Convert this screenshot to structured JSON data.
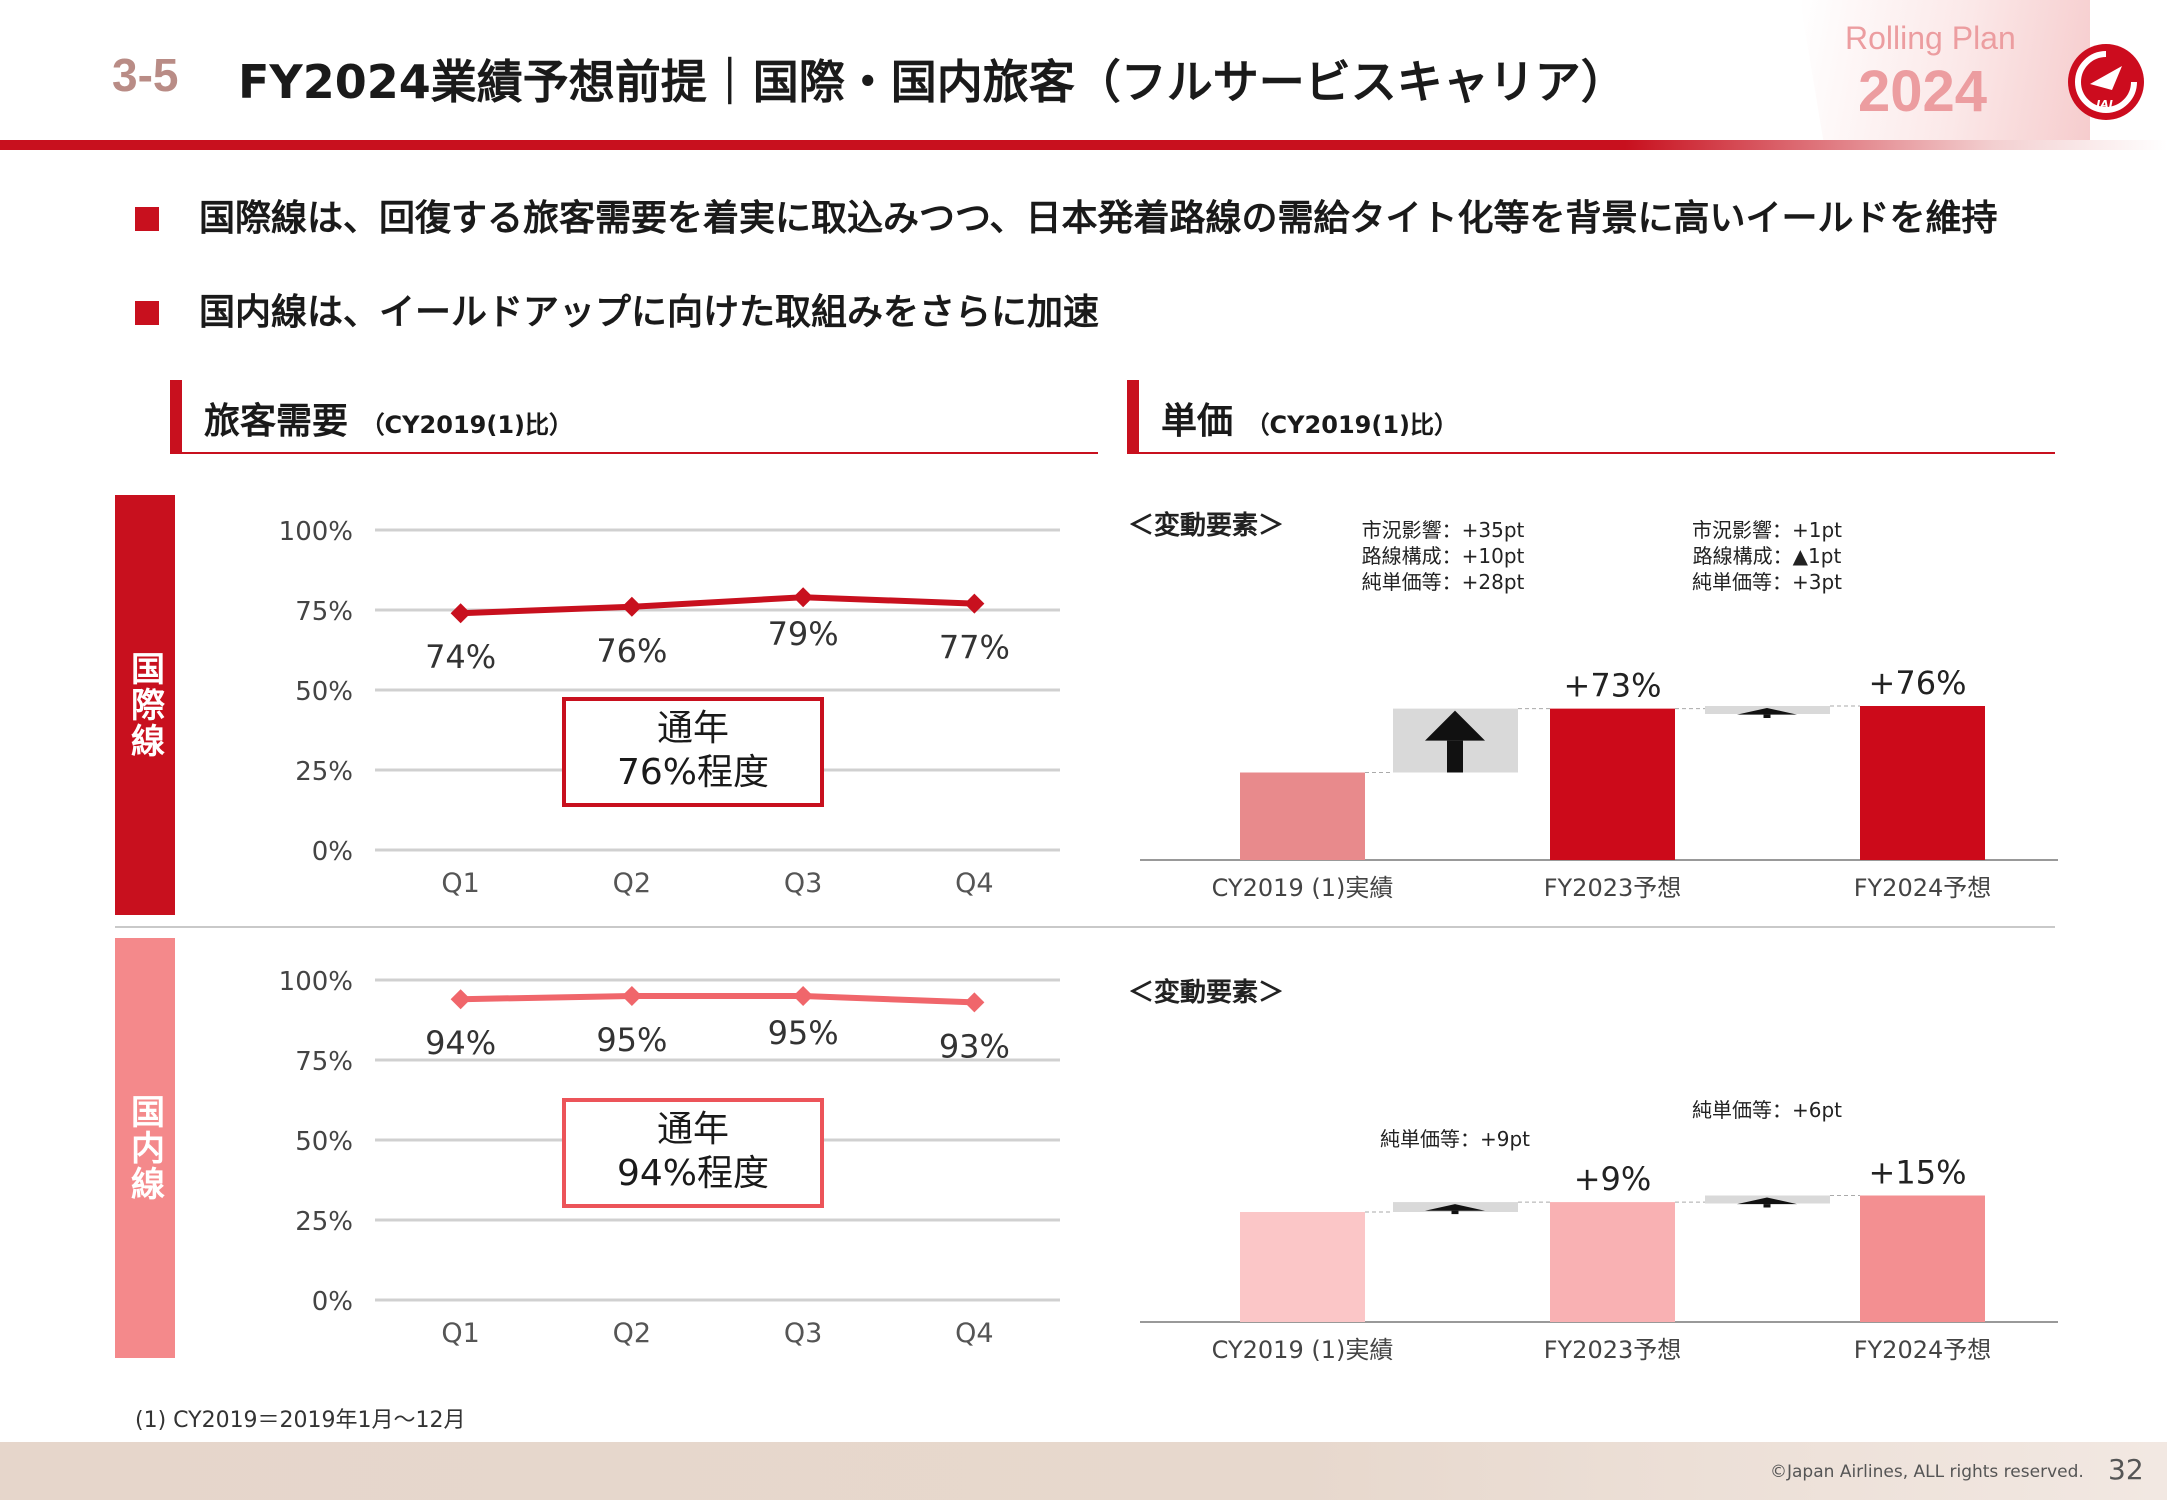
{
  "header": {
    "section_no": "3-5",
    "title": "FY2024業績予想前提｜国際・国内旅客（フルサービスキャリア）",
    "badge_line1": "Rolling Plan",
    "badge_line2": "2024",
    "logo_text": "JAL"
  },
  "bullets": [
    "国際線は、回復する旅客需要を着実に取込みつつ、日本発着路線の需給タイト化等を背景に高いイールドを維持",
    "国内線は、イールドアップに向けた取組みをさらに加速"
  ],
  "sections": {
    "demand": {
      "title": "旅客需要",
      "sub": "（CY2019(1)比）"
    },
    "unit_price": {
      "title": "単価",
      "sub": "（CY2019(1)比）"
    }
  },
  "rows": {
    "international": {
      "label": "国際線",
      "color": "#c8101e"
    },
    "domestic": {
      "label": "国内線",
      "color": "#f4898b"
    }
  },
  "factors_label": "＜変動要素＞",
  "footnote": "(1) CY2019＝2019年1月～12月",
  "footer": {
    "copyright": "©Japan Airlines, ALL rights reserved.",
    "page": "32"
  },
  "chart_data": [
    {
      "type": "line",
      "id": "intl_demand",
      "categories": [
        "Q1",
        "Q2",
        "Q3",
        "Q4"
      ],
      "series": [
        {
          "values": [
            74,
            76,
            79,
            77
          ],
          "labels": [
            "74%",
            "76%",
            "79%",
            "77%"
          ],
          "color": "#c8101e"
        }
      ],
      "yticks": [
        "0%",
        "25%",
        "50%",
        "75%",
        "100%"
      ],
      "ylim": [
        0,
        100
      ],
      "grid": true,
      "annotation": {
        "line1": "通年",
        "line2": "76%程度"
      }
    },
    {
      "type": "line",
      "id": "dom_demand",
      "categories": [
        "Q1",
        "Q2",
        "Q3",
        "Q4"
      ],
      "series": [
        {
          "values": [
            94,
            95,
            95,
            93
          ],
          "labels": [
            "94%",
            "95%",
            "95%",
            "93%"
          ],
          "color": "#f0666b"
        }
      ],
      "yticks": [
        "0%",
        "25%",
        "50%",
        "75%",
        "100%"
      ],
      "ylim": [
        0,
        100
      ],
      "grid": true,
      "annotation": {
        "line1": "通年",
        "line2": "94%程度"
      }
    },
    {
      "type": "bar",
      "id": "intl_price",
      "subtype": "waterfall",
      "categories": [
        "CY2019 (1)実績",
        "FY2023予想",
        "FY2024予想"
      ],
      "base": 100,
      "values": [
        100,
        173,
        176
      ],
      "value_labels": [
        "",
        "+73%",
        "+76%"
      ],
      "bar_colors": [
        "#e88a8c",
        "#cc0a1a",
        "#cc0a1a"
      ],
      "steps": [
        {
          "from": 100,
          "to": 173,
          "notes": [
            "市況影響：+35pt",
            "路線構成：+10pt",
            "純単価等：+28pt"
          ]
        },
        {
          "from": 173,
          "to": 176,
          "notes": [
            "市況影響：+1pt",
            "路線構成：▲1pt",
            "純単価等：+3pt"
          ]
        }
      ]
    },
    {
      "type": "bar",
      "id": "dom_price",
      "subtype": "waterfall",
      "categories": [
        "CY2019 (1)実績",
        "FY2023予想",
        "FY2024予想"
      ],
      "base": 100,
      "values": [
        100,
        109,
        115
      ],
      "value_labels": [
        "",
        "+9%",
        "+15%"
      ],
      "bar_colors": [
        "#fbc6c7",
        "#f9b1b3",
        "#f38f91"
      ],
      "steps": [
        {
          "from": 100,
          "to": 109,
          "notes": [
            "純単価等：+9pt"
          ]
        },
        {
          "from": 109,
          "to": 115,
          "notes": [
            "純単価等：+6pt"
          ]
        }
      ]
    }
  ]
}
